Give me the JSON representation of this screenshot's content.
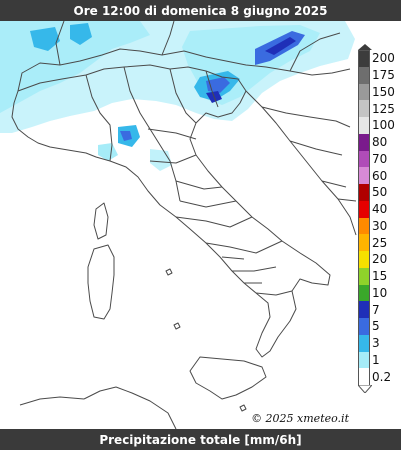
{
  "header": {
    "title": "Ore 12:00 di domenica 8 giugno 2025"
  },
  "footer": {
    "caption": "Precipitazione totale [mm/6h]"
  },
  "map": {
    "copyright": "© 2025 xmeteo.it"
  },
  "legend": {
    "labels": [
      "200",
      "175",
      "150",
      "125",
      "100",
      "80",
      "70",
      "60",
      "50",
      "40",
      "30",
      "25",
      "20",
      "15",
      "10",
      "7",
      "5",
      "3",
      "1",
      "0.2"
    ],
    "colors": [
      "#3c3c3c",
      "#6e6e6e",
      "#9a9a9a",
      "#c4c4c4",
      "#e6e6e6",
      "#7a1a8c",
      "#b04cb8",
      "#d88ad6",
      "#b00000",
      "#e60000",
      "#ff8a00",
      "#ffb400",
      "#f6e000",
      "#8fd22a",
      "#3aa82a",
      "#1f2fb8",
      "#3a6be0",
      "#36b8ea",
      "#a6ecf8",
      "#ffffff"
    ]
  }
}
